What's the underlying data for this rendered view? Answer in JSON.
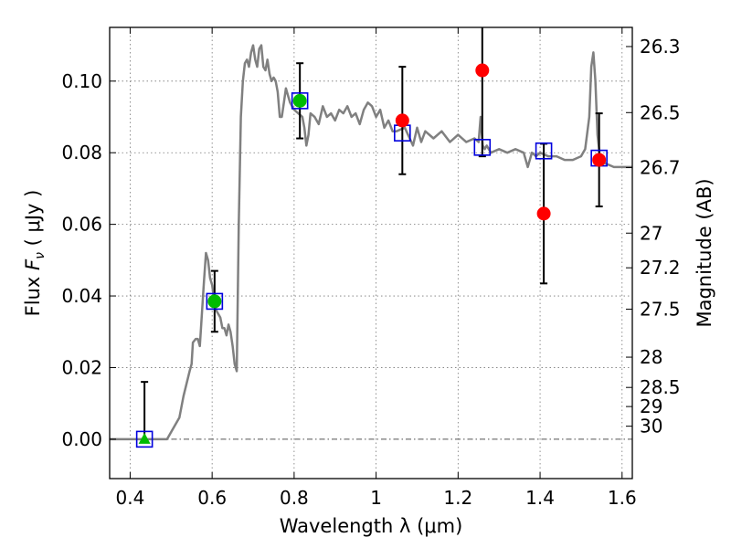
{
  "chart_data": {
    "type": "scatter",
    "xlabel": "Wavelength  λ (μm)",
    "ylabel_left": "Flux  F_ν  ( μJy )",
    "ylabel_left_parts": {
      "prefix": "Flux ",
      "symbol": "F",
      "subscript": "ν",
      "unit": " ( μJy )"
    },
    "ylabel_right": "Magnitude (AB)",
    "xlim": [
      0.35,
      1.625
    ],
    "ylim": [
      -0.011,
      0.115
    ],
    "grid": true,
    "x_ticks": [
      0.4,
      0.6,
      0.8,
      1,
      1.2,
      1.4,
      1.6
    ],
    "x_tick_labels": [
      "0.4",
      "0.6",
      "0.8",
      "1",
      "1.2",
      "1.4",
      "1.6"
    ],
    "y_ticks": [
      0.0,
      0.02,
      0.04,
      0.06,
      0.08,
      0.1
    ],
    "y_tick_labels": [
      "0.00",
      "0.02",
      "0.04",
      "0.06",
      "0.08",
      "0.10"
    ],
    "right_ticks": [
      {
        "label": "26.3",
        "mag": 26.3
      },
      {
        "label": "26.5",
        "mag": 26.5
      },
      {
        "label": "26.7",
        "mag": 26.7
      },
      {
        "label": "27",
        "mag": 27.0
      },
      {
        "label": "27.2",
        "mag": 27.2
      },
      {
        "label": "27.5",
        "mag": 27.5
      },
      {
        "label": "28",
        "mag": 28.0
      },
      {
        "label": "28.5",
        "mag": 28.5
      },
      {
        "label": "29",
        "mag": 29.0
      },
      {
        "label": "30",
        "mag": 30.0
      }
    ],
    "zero_line": {
      "y": 0.0,
      "style": "dashdot"
    },
    "colors": {
      "spectrum": "#808080",
      "model_box": "#0000dd",
      "green_point": "#00bb00",
      "red_point": "#ff0000",
      "error_bar": "#000000",
      "grid": "#777777"
    },
    "model_points": [
      {
        "x": 0.435,
        "y": 0.0
      },
      {
        "x": 0.606,
        "y": 0.0385
      },
      {
        "x": 0.814,
        "y": 0.0945
      },
      {
        "x": 1.064,
        "y": 0.0855
      },
      {
        "x": 1.259,
        "y": 0.0815
      },
      {
        "x": 1.409,
        "y": 0.0805
      },
      {
        "x": 1.544,
        "y": 0.0785
      }
    ],
    "observed_points": [
      {
        "x": 0.435,
        "y": 0.0,
        "yerr_low": 0.0,
        "yerr_high": 0.016,
        "marker": "triangle",
        "color": "green"
      },
      {
        "x": 0.606,
        "y": 0.0385,
        "yerr_low": 0.0085,
        "yerr_high": 0.0085,
        "marker": "circle",
        "color": "green"
      },
      {
        "x": 0.814,
        "y": 0.0945,
        "yerr_low": 0.0105,
        "yerr_high": 0.0105,
        "marker": "circle",
        "color": "green"
      },
      {
        "x": 1.064,
        "y": 0.089,
        "yerr_low": 0.015,
        "yerr_high": 0.015,
        "marker": "circle",
        "color": "red"
      },
      {
        "x": 1.259,
        "y": 0.103,
        "yerr_low": 0.024,
        "yerr_high": 0.024,
        "marker": "circle",
        "color": "red"
      },
      {
        "x": 1.409,
        "y": 0.063,
        "yerr_low": 0.0195,
        "yerr_high": 0.0195,
        "marker": "circle",
        "color": "red"
      },
      {
        "x": 1.544,
        "y": 0.078,
        "yerr_low": 0.013,
        "yerr_high": 0.013,
        "marker": "circle",
        "color": "red"
      }
    ],
    "spectrum": {
      "x": [
        0.35,
        0.49,
        0.5,
        0.52,
        0.53,
        0.545,
        0.55,
        0.553,
        0.56,
        0.565,
        0.57,
        0.58,
        0.585,
        0.59,
        0.595,
        0.6,
        0.605,
        0.61,
        0.62,
        0.625,
        0.63,
        0.635,
        0.64,
        0.645,
        0.65,
        0.655,
        0.66,
        0.665,
        0.67,
        0.675,
        0.68,
        0.685,
        0.69,
        0.695,
        0.7,
        0.705,
        0.71,
        0.715,
        0.72,
        0.725,
        0.73,
        0.735,
        0.74,
        0.745,
        0.75,
        0.755,
        0.76,
        0.765,
        0.77,
        0.775,
        0.78,
        0.79,
        0.8,
        0.81,
        0.82,
        0.825,
        0.83,
        0.835,
        0.84,
        0.85,
        0.86,
        0.87,
        0.88,
        0.89,
        0.9,
        0.91,
        0.92,
        0.93,
        0.94,
        0.95,
        0.96,
        0.97,
        0.98,
        0.99,
        1.0,
        1.01,
        1.02,
        1.03,
        1.04,
        1.05,
        1.07,
        1.09,
        1.1,
        1.11,
        1.12,
        1.14,
        1.16,
        1.18,
        1.2,
        1.22,
        1.24,
        1.25,
        1.255,
        1.26,
        1.265,
        1.27,
        1.28,
        1.3,
        1.32,
        1.34,
        1.36,
        1.37,
        1.38,
        1.39,
        1.4,
        1.42,
        1.44,
        1.46,
        1.48,
        1.5,
        1.51,
        1.52,
        1.525,
        1.53,
        1.535,
        1.54,
        1.545,
        1.55,
        1.56,
        1.58,
        1.6,
        1.625
      ],
      "y": [
        0.0,
        0.0,
        0.002,
        0.006,
        0.012,
        0.019,
        0.021,
        0.027,
        0.028,
        0.028,
        0.026,
        0.044,
        0.052,
        0.05,
        0.045,
        0.043,
        0.039,
        0.036,
        0.034,
        0.031,
        0.031,
        0.029,
        0.032,
        0.03,
        0.026,
        0.021,
        0.019,
        0.06,
        0.09,
        0.1,
        0.105,
        0.106,
        0.104,
        0.108,
        0.11,
        0.106,
        0.104,
        0.109,
        0.11,
        0.104,
        0.103,
        0.106,
        0.102,
        0.1,
        0.101,
        0.1,
        0.097,
        0.09,
        0.09,
        0.094,
        0.098,
        0.094,
        0.092,
        0.091,
        0.09,
        0.087,
        0.082,
        0.085,
        0.091,
        0.09,
        0.088,
        0.093,
        0.09,
        0.091,
        0.089,
        0.092,
        0.091,
        0.093,
        0.09,
        0.091,
        0.088,
        0.092,
        0.094,
        0.093,
        0.09,
        0.092,
        0.087,
        0.089,
        0.086,
        0.086,
        0.087,
        0.082,
        0.087,
        0.083,
        0.086,
        0.084,
        0.086,
        0.083,
        0.085,
        0.083,
        0.084,
        0.083,
        0.09,
        0.082,
        0.081,
        0.082,
        0.08,
        0.081,
        0.08,
        0.081,
        0.08,
        0.076,
        0.08,
        0.079,
        0.08,
        0.079,
        0.079,
        0.078,
        0.078,
        0.079,
        0.081,
        0.09,
        0.104,
        0.108,
        0.1,
        0.085,
        0.08,
        0.078,
        0.077,
        0.076,
        0.076,
        0.076
      ]
    }
  }
}
